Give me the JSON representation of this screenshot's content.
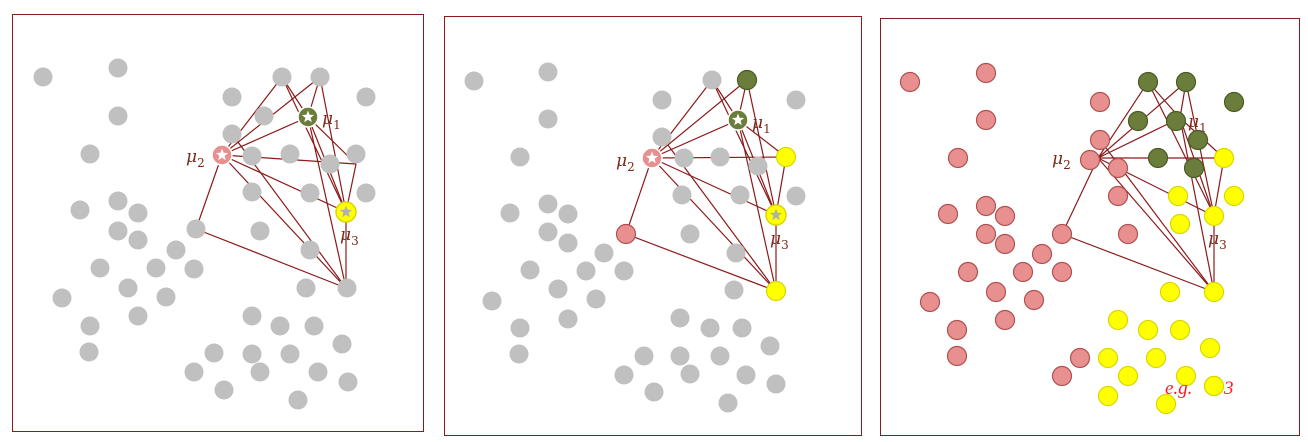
{
  "colors": {
    "unassigned": "#c0c0c0",
    "cluster_1": "#6b7d3a",
    "cluster_2": "#e89090",
    "cluster_3": "#ffff00",
    "line": "#8b1a1a",
    "border": "#8b1a1a",
    "annotation": "#ff1a1a"
  },
  "centroid_labels": {
    "mu1": "μ1",
    "mu2": "μ2",
    "mu3": "μ3"
  },
  "annotation": {
    "text": "e.g. ",
    "text2": "=3"
  }
}
